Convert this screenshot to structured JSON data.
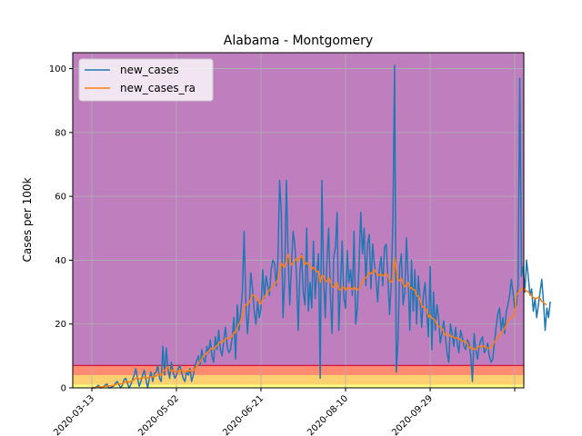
{
  "chart_data": {
    "type": "line",
    "title": "Alabama - Montgomery",
    "xlabel": "",
    "ylabel": "Cases per 100k",
    "ylim": [
      0,
      105
    ],
    "x_start": "2020-03-13",
    "x_ticks": [
      "2020-03-13",
      "2020-05-02",
      "2020-06-21",
      "2020-08-10",
      "2020-09-29",
      ""
    ],
    "y_ticks": [
      0,
      20,
      40,
      60,
      80,
      100
    ],
    "grid": true,
    "legend_position": "top-left",
    "background_bands": [
      {
        "from": 0,
        "to": 1,
        "color": "#ffff80"
      },
      {
        "from": 1,
        "to": 4,
        "color": "#ffd070"
      },
      {
        "from": 4,
        "to": 7,
        "color": "#ff8c70"
      },
      {
        "from": 7,
        "to": 105,
        "color": "#bf7fbf"
      }
    ],
    "threshold_line": {
      "y": 7,
      "color": "#dc143c"
    },
    "series": [
      {
        "name": "new_cases",
        "color": "#1f77b4",
        "values": [
          0,
          0,
          0,
          0.5,
          0.8,
          0,
          0,
          0.5,
          0.9,
          1.2,
          0,
          0,
          0.4,
          0.6,
          1.5,
          2,
          1,
          0,
          0.8,
          2.5,
          3,
          1.5,
          0,
          1,
          2.5,
          4,
          6,
          3,
          0.5,
          2,
          4,
          5.5,
          2.5,
          0,
          3,
          5,
          2,
          4.5,
          5,
          7,
          3,
          2,
          13,
          4,
          12.5,
          6,
          3,
          8,
          5,
          3,
          4,
          6,
          7,
          5,
          3,
          2,
          5,
          4,
          6,
          2,
          4,
          7,
          8.5,
          10,
          7,
          12,
          9,
          8,
          13,
          11,
          15,
          10,
          8,
          16,
          12,
          18,
          12,
          10,
          15,
          19,
          13,
          11,
          12,
          16,
          22,
          9,
          26,
          18,
          24,
          30,
          49,
          27,
          17,
          25,
          36,
          31,
          24,
          20,
          27,
          22,
          25,
          37,
          28,
          35,
          32,
          29,
          37,
          40,
          39,
          32,
          40,
          65,
          55,
          22,
          34,
          65,
          42,
          26,
          38,
          49,
          45,
          35,
          18,
          36,
          42,
          30,
          26,
          50,
          24,
          33,
          25,
          46,
          28,
          36,
          42,
          3,
          65,
          35,
          22,
          40,
          50,
          30,
          17,
          41,
          44,
          55,
          18,
          32,
          46,
          28,
          25,
          43,
          33,
          37,
          29,
          49,
          20,
          25,
          39,
          55,
          42,
          50,
          32,
          45,
          48,
          31,
          45,
          39,
          34,
          27,
          37,
          41,
          32,
          44,
          45,
          35,
          23,
          33,
          52,
          101,
          5,
          15,
          38,
          42,
          26,
          30,
          47,
          34,
          18,
          40,
          24,
          37,
          20,
          35,
          28,
          19,
          29,
          33,
          24,
          16,
          38,
          12,
          30,
          18,
          26,
          22,
          14,
          17,
          21,
          16,
          11,
          8,
          20,
          17,
          13,
          19,
          14,
          11,
          18,
          16,
          13,
          12,
          15,
          14,
          10,
          2,
          17,
          12,
          9,
          13,
          15,
          16,
          11,
          12,
          14,
          10,
          8,
          9,
          14,
          19,
          23,
          25,
          18,
          22,
          17,
          24,
          26,
          29,
          34,
          30,
          25,
          26,
          32,
          97,
          35,
          38,
          30,
          40,
          35,
          29,
          31,
          24,
          28,
          22,
          26,
          30,
          34,
          27,
          18,
          25,
          22,
          27
        ],
        "note_values": []
      },
      {
        "name": "new_cases_ra",
        "color": "#ff7f0e",
        "values": [
          0,
          0,
          0,
          0.2,
          0.3,
          0.3,
          0.3,
          0.4,
          0.5,
          0.6,
          0.6,
          0.6,
          0.7,
          0.8,
          1,
          1.2,
          1.3,
          1.2,
          1.3,
          1.6,
          1.9,
          2,
          1.8,
          1.9,
          2.2,
          2.6,
          3,
          3.1,
          2.9,
          2.9,
          3.1,
          3.4,
          3.4,
          3.1,
          3.2,
          3.5,
          3.4,
          3.6,
          3.7,
          4.2,
          4.1,
          3.9,
          5,
          5.4,
          6.2,
          6.5,
          5.5,
          5.3,
          5.5,
          5.2,
          5,
          5.2,
          5.4,
          5.5,
          5.3,
          5,
          5.1,
          5.2,
          5.5,
          5.2,
          5.3,
          6,
          6.8,
          7.6,
          8.3,
          9.2,
          10,
          10.4,
          10.9,
          11.4,
          12.2,
          12.3,
          12.1,
          12.8,
          13.2,
          14,
          14.3,
          14.3,
          14.7,
          15.4,
          15.6,
          15.5,
          15.6,
          16.3,
          17.3,
          17.2,
          19,
          19.9,
          21.2,
          22.3,
          25.1,
          26.1,
          26.1,
          26.7,
          28,
          29.1,
          29,
          28.2,
          27.6,
          26.9,
          26.3,
          27.8,
          28.4,
          29.3,
          30.1,
          30.5,
          31.3,
          31.8,
          32.5,
          33,
          34,
          37,
          39,
          38.2,
          37.8,
          40,
          41.8,
          40,
          38.5,
          39,
          39.8,
          40.5,
          40,
          40.6,
          41.5,
          40.2,
          38.6,
          39.3,
          38.7,
          38,
          37.2,
          37.8,
          37,
          36.4,
          36.5,
          33,
          35.2,
          35,
          33.4,
          33.5,
          34.5,
          33.2,
          31.8,
          31.5,
          32,
          33,
          30.9,
          30.6,
          31.6,
          31.3,
          30.6,
          31.5,
          31.2,
          31.3,
          30.8,
          31.6,
          30.8,
          30.6,
          31.1,
          32.5,
          33,
          34.2,
          34.4,
          35.2,
          36.2,
          35.7,
          36.3,
          37,
          36.2,
          35.2,
          35.4,
          35.7,
          35,
          35.4,
          35.8,
          35.3,
          33.4,
          33.1,
          33.9,
          40.7,
          37.3,
          33.9,
          33.5,
          34.4,
          32.6,
          31.7,
          32.4,
          33,
          31.2,
          31.4,
          30.7,
          30.7,
          28.9,
          28.7,
          27.9,
          25.8,
          25.2,
          25.1,
          24.3,
          22.2,
          22.8,
          21.8,
          21.6,
          21.1,
          19.7,
          19.3,
          19.1,
          18.5,
          17.5,
          16.5,
          16.9,
          16.9,
          16.1,
          16.2,
          15.8,
          15.5,
          15.7,
          15.4,
          15,
          14.6,
          14.6,
          14.5,
          13.9,
          12.3,
          12.8,
          12.5,
          12,
          12.1,
          12.6,
          13,
          12.8,
          12.9,
          13.2,
          12.9,
          12.4,
          12.3,
          12.6,
          13.5,
          14.3,
          15.2,
          15.8,
          16.6,
          16.9,
          17.8,
          18.6,
          19.6,
          21,
          21.6,
          22,
          22.3,
          23,
          29,
          29.7,
          30.6,
          30.8,
          31.4,
          30.8,
          30.2,
          30.2,
          29.3,
          28.9,
          28.3,
          28.1,
          28,
          28.4,
          28,
          27,
          26.8,
          26.2,
          26.1
        ]
      }
    ]
  }
}
